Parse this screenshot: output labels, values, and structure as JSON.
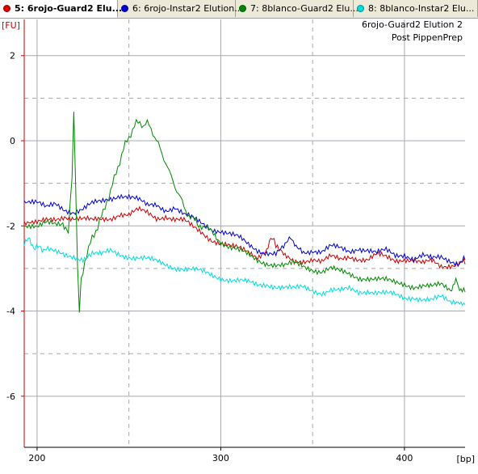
{
  "tabs": [
    {
      "label": "5: 6rojo-Guard2 Elu...",
      "color": "#e00000",
      "active": true
    },
    {
      "label": "6: 6rojo-Instar2 Elution...",
      "color": "#0000dd",
      "active": false
    },
    {
      "label": "7: 8blanco-Guard2 Elu...",
      "color": "#008800",
      "active": false
    },
    {
      "label": "8: 8blanco-Instar2 Elu...",
      "color": "#00dddd",
      "active": false
    }
  ],
  "chart_data": {
    "type": "line",
    "title": "6rojo-Guard2 Elution 2",
    "subtitle": "Post PippenPrep",
    "ylabel": "[FU]",
    "xlabel": "[bp]",
    "xlim": [
      193,
      433
    ],
    "ylim": [
      -7.2,
      2.85
    ],
    "x_ticks": [
      200,
      300,
      400
    ],
    "y_ticks": [
      2,
      0,
      -2,
      -4,
      -6
    ],
    "x_minor_grid": [
      250,
      350
    ],
    "y_minor_grid": [
      1,
      -1,
      -3,
      -5
    ],
    "grid": true,
    "series": [
      {
        "color": "#cc0000",
        "points": [
          [
            193,
            -2.0
          ],
          [
            200,
            -1.95
          ],
          [
            210,
            -1.85
          ],
          [
            215,
            -1.75
          ],
          [
            220,
            -1.8
          ],
          [
            225,
            -1.85
          ],
          [
            230,
            -1.9
          ],
          [
            235,
            -1.85
          ],
          [
            240,
            -1.8
          ],
          [
            245,
            -1.7
          ],
          [
            250,
            -1.75
          ],
          [
            255,
            -1.65
          ],
          [
            260,
            -1.7
          ],
          [
            265,
            -1.8
          ],
          [
            270,
            -1.75
          ],
          [
            275,
            -1.85
          ],
          [
            280,
            -1.9
          ],
          [
            285,
            -2.05
          ],
          [
            290,
            -2.15
          ],
          [
            295,
            -2.3
          ],
          [
            300,
            -2.4
          ],
          [
            305,
            -2.5
          ],
          [
            310,
            -2.55
          ],
          [
            315,
            -2.6
          ],
          [
            320,
            -2.7
          ],
          [
            325,
            -2.55
          ],
          [
            328,
            -2.3
          ],
          [
            330,
            -2.5
          ],
          [
            335,
            -2.75
          ],
          [
            340,
            -2.85
          ],
          [
            345,
            -2.8
          ],
          [
            350,
            -2.75
          ],
          [
            355,
            -2.85
          ],
          [
            360,
            -2.75
          ],
          [
            365,
            -2.8
          ],
          [
            370,
            -2.7
          ],
          [
            375,
            -2.75
          ],
          [
            380,
            -2.8
          ],
          [
            385,
            -2.7
          ],
          [
            390,
            -2.75
          ],
          [
            395,
            -2.8
          ],
          [
            400,
            -2.75
          ],
          [
            405,
            -2.8
          ],
          [
            410,
            -2.9
          ],
          [
            415,
            -2.85
          ],
          [
            420,
            -2.95
          ],
          [
            425,
            -2.9
          ],
          [
            430,
            -2.85
          ],
          [
            433,
            -2.9
          ]
        ]
      },
      {
        "color": "#0000cc",
        "points": [
          [
            193,
            -1.5
          ],
          [
            200,
            -1.45
          ],
          [
            205,
            -1.6
          ],
          [
            210,
            -1.5
          ],
          [
            215,
            -1.6
          ],
          [
            220,
            -1.65
          ],
          [
            225,
            -1.6
          ],
          [
            230,
            -1.5
          ],
          [
            235,
            -1.45
          ],
          [
            240,
            -1.35
          ],
          [
            245,
            -1.25
          ],
          [
            250,
            -1.3
          ],
          [
            255,
            -1.4
          ],
          [
            260,
            -1.55
          ],
          [
            265,
            -1.5
          ],
          [
            270,
            -1.6
          ],
          [
            275,
            -1.55
          ],
          [
            280,
            -1.75
          ],
          [
            285,
            -1.85
          ],
          [
            290,
            -1.95
          ],
          [
            295,
            -2.05
          ],
          [
            300,
            -2.1
          ],
          [
            305,
            -2.2
          ],
          [
            310,
            -2.3
          ],
          [
            315,
            -2.45
          ],
          [
            320,
            -2.55
          ],
          [
            325,
            -2.6
          ],
          [
            330,
            -2.65
          ],
          [
            335,
            -2.5
          ],
          [
            338,
            -2.2
          ],
          [
            341,
            -2.55
          ],
          [
            345,
            -2.6
          ],
          [
            350,
            -2.55
          ],
          [
            355,
            -2.6
          ],
          [
            360,
            -2.5
          ],
          [
            365,
            -2.55
          ],
          [
            370,
            -2.6
          ],
          [
            375,
            -2.5
          ],
          [
            380,
            -2.55
          ],
          [
            385,
            -2.65
          ],
          [
            390,
            -2.6
          ],
          [
            395,
            -2.7
          ],
          [
            400,
            -2.65
          ],
          [
            405,
            -2.75
          ],
          [
            410,
            -2.7
          ],
          [
            415,
            -2.8
          ],
          [
            420,
            -2.75
          ],
          [
            425,
            -2.8
          ],
          [
            430,
            -2.85
          ],
          [
            433,
            -2.8
          ]
        ]
      },
      {
        "color": "#008800",
        "points": [
          [
            193,
            -2.05
          ],
          [
            200,
            -2.0
          ],
          [
            205,
            -1.95
          ],
          [
            210,
            -2.0
          ],
          [
            214,
            -1.9
          ],
          [
            217,
            -2.2
          ],
          [
            219,
            -0.8
          ],
          [
            220,
            0.7
          ],
          [
            221,
            -1.0
          ],
          [
            222,
            -3.0
          ],
          [
            223,
            -4.05
          ],
          [
            224,
            -3.3
          ],
          [
            226,
            -2.8
          ],
          [
            228,
            -2.55
          ],
          [
            230,
            -2.3
          ],
          [
            232,
            -2.1
          ],
          [
            234,
            -1.9
          ],
          [
            236,
            -1.7
          ],
          [
            238,
            -1.4
          ],
          [
            240,
            -1.2
          ],
          [
            242,
            -0.9
          ],
          [
            244,
            -0.6
          ],
          [
            246,
            -0.35
          ],
          [
            248,
            -0.1
          ],
          [
            250,
            0.1
          ],
          [
            252,
            0.25
          ],
          [
            254,
            0.4
          ],
          [
            256,
            0.45
          ],
          [
            258,
            0.35
          ],
          [
            260,
            0.4
          ],
          [
            262,
            0.3
          ],
          [
            264,
            0.1
          ],
          [
            266,
            -0.1
          ],
          [
            268,
            -0.3
          ],
          [
            270,
            -0.5
          ],
          [
            272,
            -0.75
          ],
          [
            274,
            -0.95
          ],
          [
            276,
            -1.15
          ],
          [
            278,
            -1.35
          ],
          [
            280,
            -1.55
          ],
          [
            282,
            -1.7
          ],
          [
            285,
            -1.85
          ],
          [
            288,
            -1.95
          ],
          [
            292,
            -2.05
          ],
          [
            296,
            -2.2
          ],
          [
            300,
            -2.35
          ],
          [
            305,
            -2.5
          ],
          [
            310,
            -2.6
          ],
          [
            315,
            -2.7
          ],
          [
            320,
            -2.8
          ],
          [
            325,
            -2.85
          ],
          [
            330,
            -2.9
          ],
          [
            335,
            -2.95
          ],
          [
            340,
            -2.9
          ],
          [
            345,
            -2.95
          ],
          [
            350,
            -3.0
          ],
          [
            355,
            -3.05
          ],
          [
            360,
            -3.0
          ],
          [
            365,
            -3.1
          ],
          [
            370,
            -3.15
          ],
          [
            375,
            -3.2
          ],
          [
            380,
            -3.2
          ],
          [
            385,
            -3.25
          ],
          [
            390,
            -3.3
          ],
          [
            395,
            -3.35
          ],
          [
            400,
            -3.35
          ],
          [
            405,
            -3.4
          ],
          [
            410,
            -3.4
          ],
          [
            415,
            -3.45
          ],
          [
            420,
            -3.4
          ],
          [
            425,
            -3.5
          ],
          [
            428,
            -3.25
          ],
          [
            430,
            -3.45
          ],
          [
            433,
            -3.55
          ]
        ]
      },
      {
        "color": "#00dddd",
        "points": [
          [
            193,
            -2.45
          ],
          [
            196,
            -2.3
          ],
          [
            199,
            -2.55
          ],
          [
            202,
            -2.5
          ],
          [
            205,
            -2.55
          ],
          [
            210,
            -2.65
          ],
          [
            215,
            -2.7
          ],
          [
            220,
            -2.7
          ],
          [
            225,
            -2.75
          ],
          [
            230,
            -2.65
          ],
          [
            235,
            -2.7
          ],
          [
            240,
            -2.6
          ],
          [
            245,
            -2.65
          ],
          [
            250,
            -2.7
          ],
          [
            255,
            -2.75
          ],
          [
            260,
            -2.8
          ],
          [
            265,
            -2.85
          ],
          [
            270,
            -2.9
          ],
          [
            275,
            -2.95
          ],
          [
            280,
            -3.0
          ],
          [
            285,
            -3.05
          ],
          [
            290,
            -3.1
          ],
          [
            295,
            -3.15
          ],
          [
            300,
            -3.2
          ],
          [
            305,
            -3.25
          ],
          [
            310,
            -3.3
          ],
          [
            315,
            -3.35
          ],
          [
            320,
            -3.4
          ],
          [
            325,
            -3.35
          ],
          [
            330,
            -3.4
          ],
          [
            335,
            -3.45
          ],
          [
            340,
            -3.5
          ],
          [
            345,
            -3.45
          ],
          [
            350,
            -3.5
          ],
          [
            355,
            -3.55
          ],
          [
            360,
            -3.5
          ],
          [
            365,
            -3.55
          ],
          [
            370,
            -3.5
          ],
          [
            375,
            -3.55
          ],
          [
            380,
            -3.5
          ],
          [
            385,
            -3.55
          ],
          [
            390,
            -3.6
          ],
          [
            395,
            -3.65
          ],
          [
            400,
            -3.7
          ],
          [
            405,
            -3.65
          ],
          [
            410,
            -3.7
          ],
          [
            415,
            -3.75
          ],
          [
            420,
            -3.7
          ],
          [
            425,
            -3.8
          ],
          [
            430,
            -3.75
          ],
          [
            433,
            -3.85
          ]
        ]
      }
    ]
  }
}
